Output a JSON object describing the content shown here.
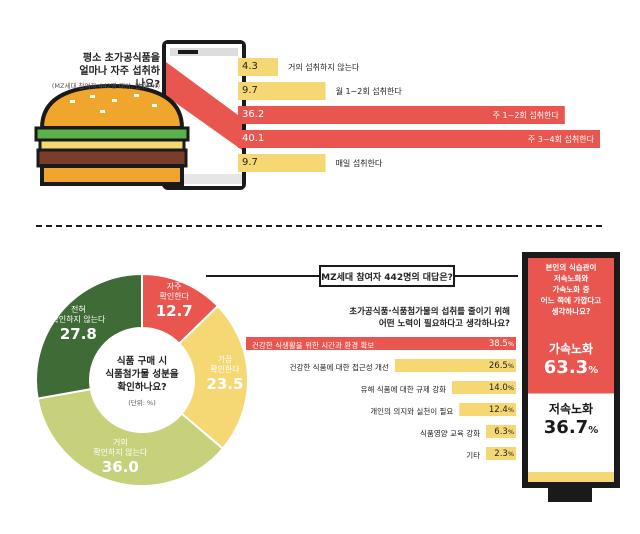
{
  "top": {
    "question_line1": "평소 초가공식품을",
    "question_line2": "얼마나 자주 섭취하나요?",
    "note": "(MZ세대 참여자 442명 대상, 단위: %)"
  },
  "bottom": {
    "banner": "MZ세대 참여자 442명의 대답은?",
    "donut_center_line1": "식품 구매 시",
    "donut_center_line2": "식품첨가물 성분을",
    "donut_center_line3": "확인하나요?",
    "donut_unit": "(단위: %)",
    "effort_question_line1": "초가공식품·식품첨가물의 섭취를 줄이기 위해",
    "effort_question_line2": "어떤 노력이 필요하다고 생각하나요?",
    "habit_question_line1": "본인의 식습관이",
    "habit_question_line2": "저속노화와",
    "habit_question_line3": "가속노화 중",
    "habit_question_line4": "어느 쪽에 가깝다고",
    "habit_question_line5": "생각하나요?"
  },
  "colors": {
    "red": "#e8564f",
    "yellow": "#f5d774",
    "olive": "#c7d17c",
    "darkgreen": "#3f6b36",
    "black": "#1a1a1a"
  },
  "chart_data": [
    {
      "type": "bar",
      "title": "평소 초가공식품을 얼마나 자주 섭취하나요?",
      "categories": [
        "거의 섭취하지 않는다",
        "월 1~2회 섭취한다",
        "주 1~2회 섭취한다",
        "주 3~4회 섭취한다",
        "매일 섭취한다"
      ],
      "values": [
        4.3,
        9.7,
        36.2,
        40.1,
        9.7
      ],
      "value_labels": [
        "4.3",
        "9.7",
        "36.2",
        "40.1",
        "9.7"
      ]
    },
    {
      "type": "pie",
      "title": "식품 구매 시 식품첨가물 성분을 확인하나요?",
      "categories": [
        "자주 확인한다",
        "가끔 확인한다",
        "거의 확인하지 않는다",
        "전혀 확인하지 않는다"
      ],
      "label_lines": [
        [
          "자주",
          "확인한다"
        ],
        [
          "가끔",
          "확인한다"
        ],
        [
          "거의",
          "확인하지 않는다"
        ],
        [
          "전혀",
          "확인하지 않는다"
        ]
      ],
      "values": [
        12.7,
        23.5,
        36.0,
        27.8
      ],
      "value_labels": [
        "12.7",
        "23.5",
        "36.0",
        "27.8"
      ]
    },
    {
      "type": "bar",
      "title": "초가공식품·식품첨가물의 섭취를 줄이기 위해 어떤 노력이 필요하다고 생각하나요?",
      "categories": [
        "건강한 식생활을 위한 시간과 환경 확보",
        "건강한 식품에 대한 접근성 개선",
        "유해 식품에 대한 규제 강화",
        "개인의 의지와 실천이 필요",
        "식품영양 교육 강화",
        "기타"
      ],
      "values": [
        38.5,
        26.5,
        14.0,
        12.4,
        6.3,
        2.3
      ],
      "value_labels": [
        "38.5",
        "26.5",
        "14.0",
        "12.4",
        "6.3",
        "2.3"
      ],
      "unit": "%"
    },
    {
      "type": "bar",
      "title": "본인의 식습관이 저속노화와 가속노화 중 어느 쪽에 가깝다고 생각하나요?",
      "categories": [
        "가속노화",
        "저속노화"
      ],
      "values": [
        63.3,
        36.7
      ],
      "value_labels": [
        "63.3",
        "36.7"
      ],
      "unit": "%"
    }
  ]
}
